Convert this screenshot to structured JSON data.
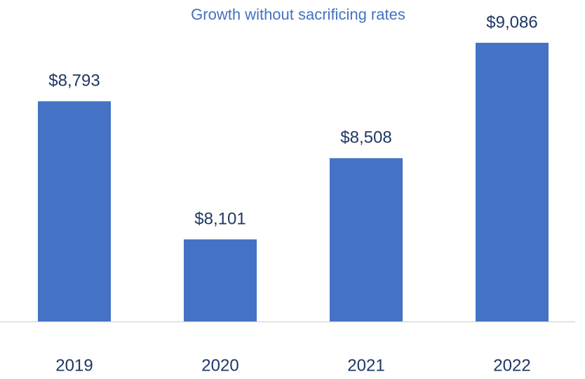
{
  "chart_data": {
    "type": "bar",
    "title": "Growth without sacrificing rates",
    "categories": [
      "2019",
      "2020",
      "2021",
      "2022"
    ],
    "values": [
      8793,
      8101,
      8508,
      9086
    ],
    "value_labels": [
      "$8,793",
      "$8,101",
      "$8,508",
      "$9,086"
    ],
    "color": "#4472c4",
    "ylim": [
      7690,
      9230
    ]
  }
}
